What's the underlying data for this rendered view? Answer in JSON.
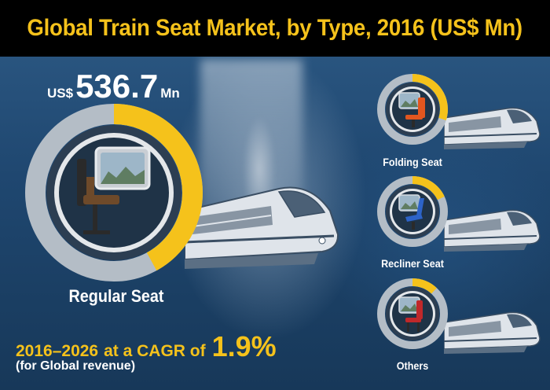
{
  "title": "Global Train Seat Market, by Type, 2016 (US$ Mn)",
  "highlight": {
    "currency": "US$",
    "value": "536.7",
    "unit": "Mn"
  },
  "segments": [
    {
      "label": "Regular Seat",
      "share": 0.42
    },
    {
      "label": "Folding Seat",
      "share": 0.3
    },
    {
      "label": "Recliner Seat",
      "share": 0.18
    },
    {
      "label": "Others",
      "share": 0.12
    }
  ],
  "cagr": {
    "period": "2016–2026",
    "text": "at a CAGR of",
    "value": "1.9%",
    "note": "(for Global revenue)"
  },
  "colors": {
    "accent": "#f5c21b",
    "ring_track": "#b4bdc6",
    "ring_inner": "#2c3e52",
    "background": "#1f4770"
  },
  "icons": [
    "regular-seat-icon",
    "folding-seat-icon",
    "recliner-seat-icon",
    "other-seat-icon",
    "train-icon"
  ]
}
